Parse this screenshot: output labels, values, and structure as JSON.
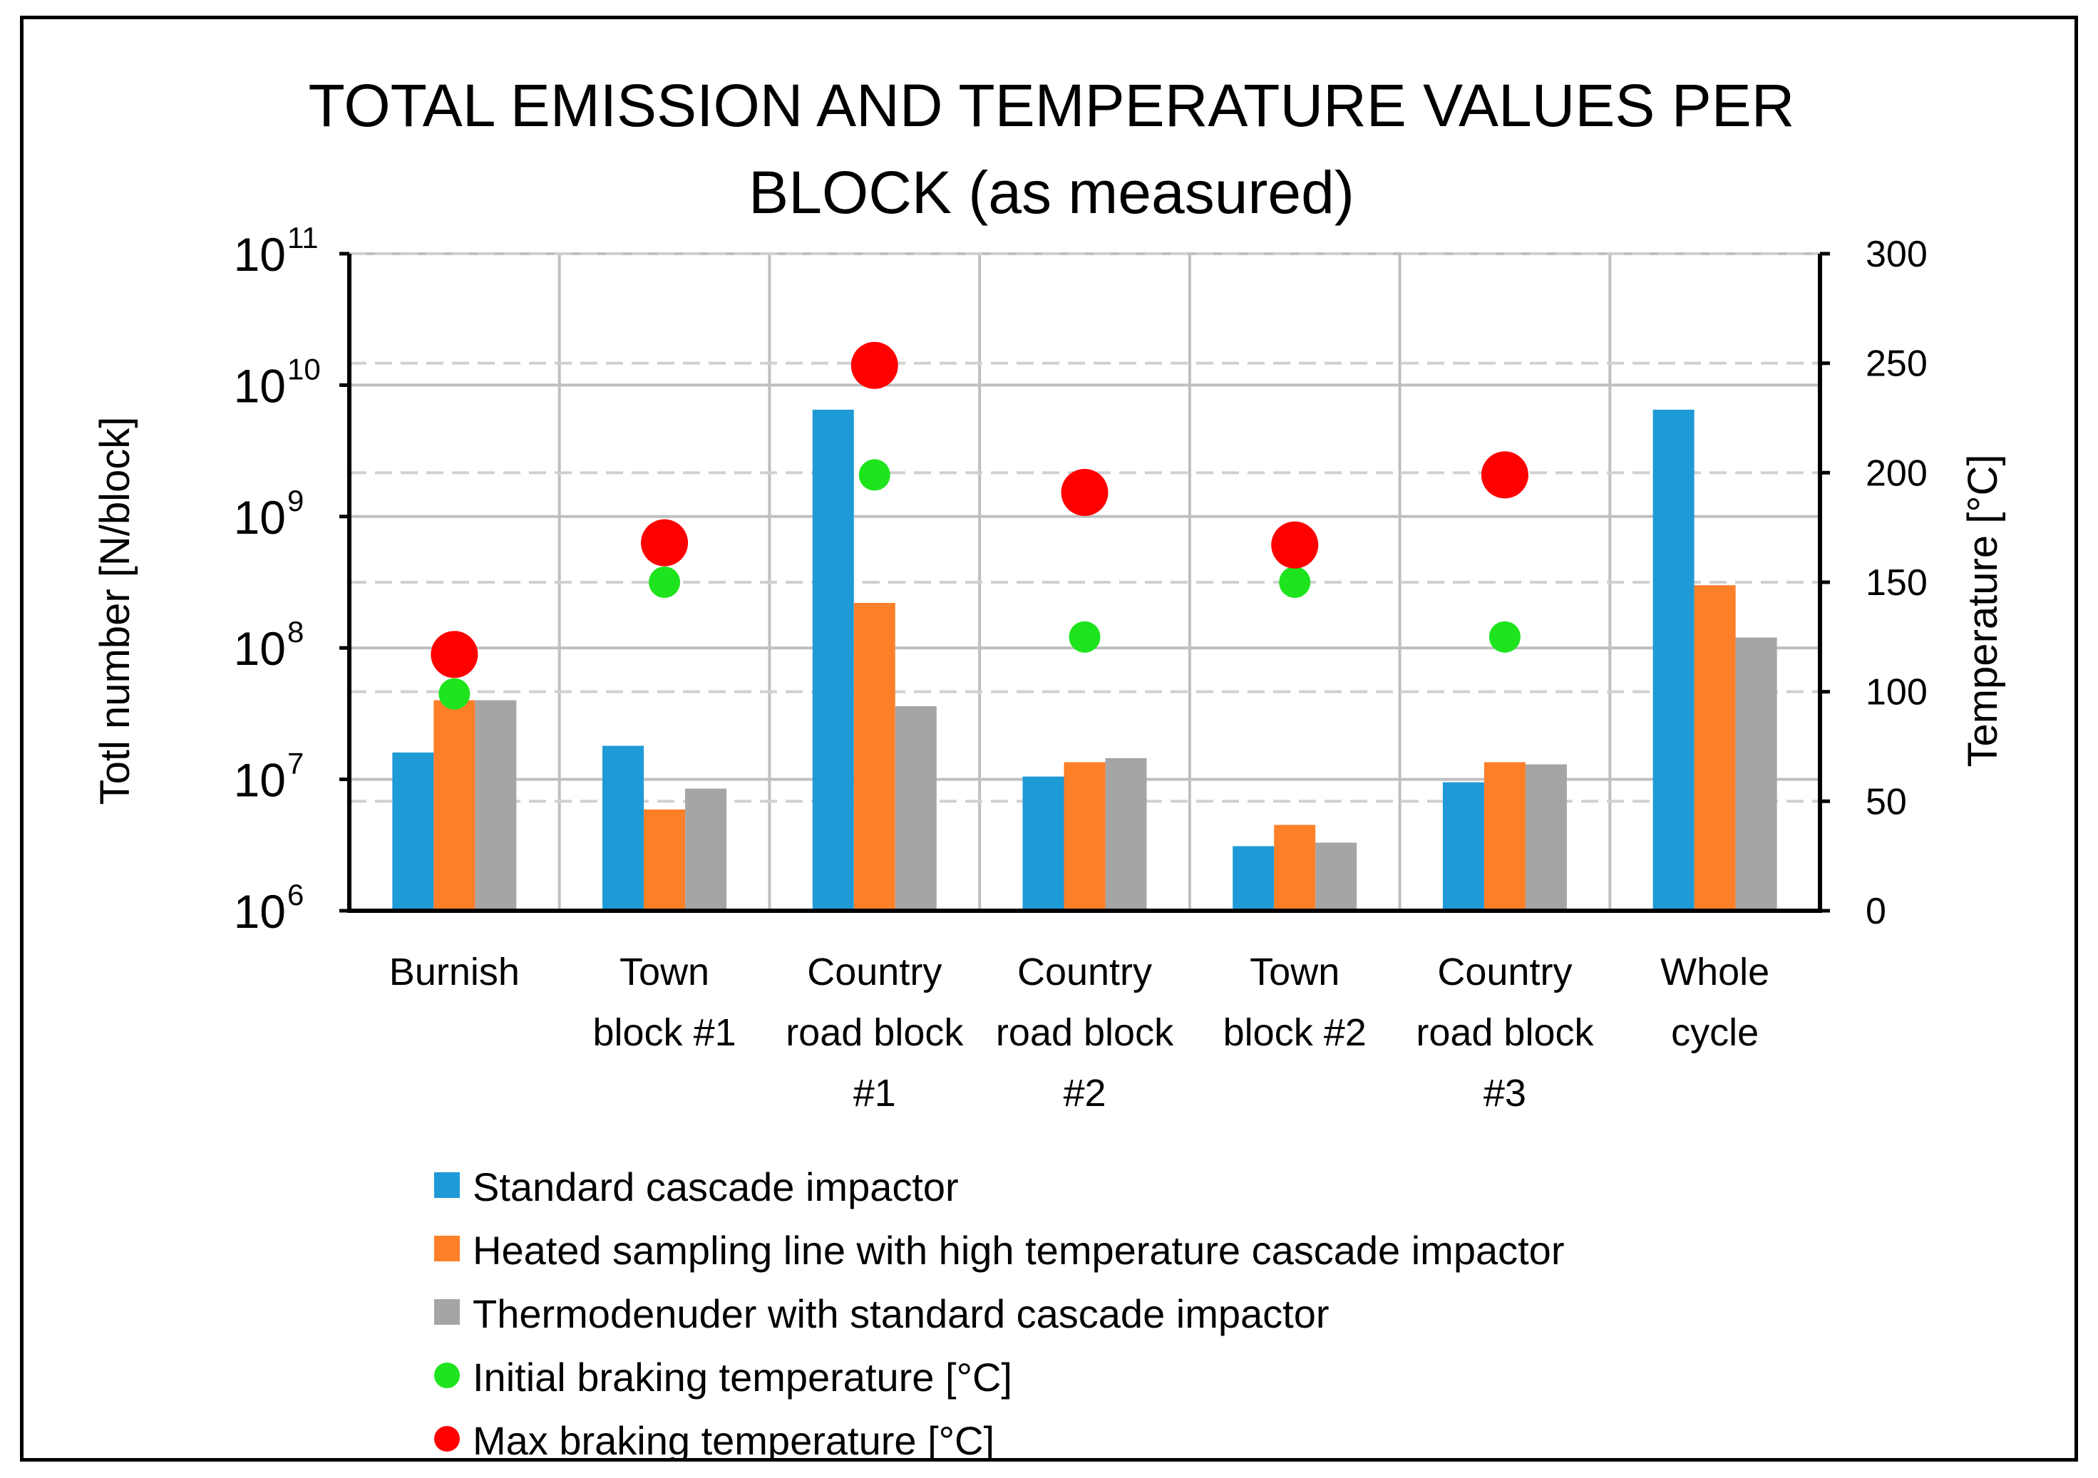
{
  "chart_data": {
    "type": "bar",
    "title": [
      "TOTAL EMISSION AND TEMPERATURE VALUES PER",
      "BLOCK (as measured)"
    ],
    "ylabel": "Totl number [N/block]",
    "y2label": "Temperature [°C]",
    "yscale": "log",
    "ylim": [
      1000000,
      100000000000
    ],
    "yticks": [
      {
        "base": "10",
        "exp": "6",
        "value": 1000000
      },
      {
        "base": "10",
        "exp": "7",
        "value": 10000000
      },
      {
        "base": "10",
        "exp": "8",
        "value": 100000000
      },
      {
        "base": "10",
        "exp": "9",
        "value": 1000000000
      },
      {
        "base": "10",
        "exp": "10",
        "value": 10000000000
      },
      {
        "base": "10",
        "exp": "11",
        "value": 100000000000
      }
    ],
    "y2lim": [
      0,
      300
    ],
    "y2ticks": [
      "0",
      "50",
      "100",
      "150",
      "200",
      "250",
      "300"
    ],
    "categories": [
      [
        "Burnish"
      ],
      [
        "Town",
        "block #1"
      ],
      [
        "Country",
        "road block",
        "#1"
      ],
      [
        "Country",
        "road block",
        "#2"
      ],
      [
        "Town",
        "block #2"
      ],
      [
        "Country",
        "road block",
        "#3"
      ],
      [
        "Whole",
        "cycle"
      ]
    ],
    "series": [
      {
        "name": "Standard cascade impactor",
        "axis": "left",
        "kind": "bar",
        "color": "#1e9ad6",
        "values": [
          16000000,
          18000000,
          6500000000,
          10500000,
          3100000,
          9500000,
          6500000000
        ]
      },
      {
        "name": "Heated sampling line with high temperature cascade impactor",
        "axis": "left",
        "kind": "bar",
        "color": "#fd7f28",
        "values": [
          40000000,
          5900000,
          220000000,
          13500000,
          4500000,
          13500000,
          300000000
        ]
      },
      {
        "name": "Thermodenuder with standard cascade impactor",
        "axis": "left",
        "kind": "bar",
        "color": "#a5a5a5",
        "values": [
          40000000,
          8500000,
          36000000,
          14500000,
          3300000,
          13000000,
          120000000
        ]
      },
      {
        "name": "Initial braking temperature [°C]",
        "axis": "right",
        "kind": "point",
        "color": "#1de41d",
        "values": [
          99,
          150,
          199,
          125,
          150,
          125,
          null
        ]
      },
      {
        "name": "Max braking temperature [°C]",
        "axis": "right",
        "kind": "point",
        "color": "#ff0000",
        "values": [
          117,
          168,
          249,
          191,
          167,
          199,
          null
        ]
      }
    ],
    "grid": true,
    "legend": "bottom"
  }
}
